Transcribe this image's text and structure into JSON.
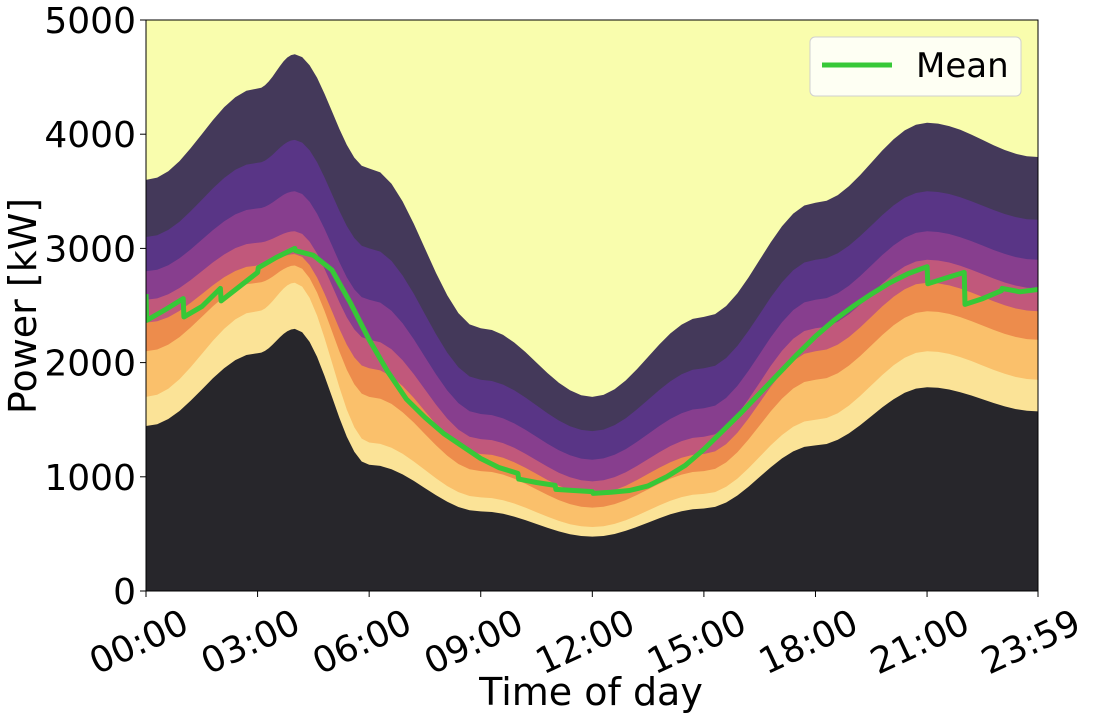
{
  "chart_data": {
    "type": "heatmap",
    "title": "",
    "xlabel": "Time of day",
    "ylabel": "Power [kW]",
    "x_ticks": [
      {
        "hour": 0,
        "label": "00:00"
      },
      {
        "hour": 3,
        "label": "03:00"
      },
      {
        "hour": 6,
        "label": "06:00"
      },
      {
        "hour": 9,
        "label": "09:00"
      },
      {
        "hour": 12,
        "label": "12:00"
      },
      {
        "hour": 15,
        "label": "15:00"
      },
      {
        "hour": 18,
        "label": "18:00"
      },
      {
        "hour": 21,
        "label": "21:00"
      },
      {
        "hour": 23.983,
        "label": "23:59"
      }
    ],
    "y_ticks": [
      0,
      1000,
      2000,
      3000,
      4000,
      5000
    ],
    "xlim": [
      0,
      23.983
    ],
    "ylim": [
      0,
      5000
    ],
    "legend": {
      "placement": "top-right",
      "entries": [
        "Mean"
      ]
    },
    "colormap": [
      "#27262b",
      "#3a2e55",
      "#5b3589",
      "#8a3f8e",
      "#c45a7a",
      "#ef8f4a",
      "#fbc36d",
      "#fbe59a",
      "#f9fdad"
    ],
    "mean_color": "#37c837",
    "series": [
      {
        "name": "Mean",
        "x": [
          0,
          0.02,
          0.5,
          1.0,
          1.02,
          1.5,
          2.0,
          2.02,
          3.0,
          3.02,
          3.5,
          4.0,
          4.02,
          4.5,
          5.0,
          5.5,
          6.0,
          6.5,
          7.0,
          7.5,
          8.0,
          8.5,
          9.0,
          9.5,
          10.0,
          10.02,
          10.5,
          11.0,
          11.02,
          11.5,
          12.0,
          12.02,
          12.5,
          13.0,
          13.5,
          14.0,
          14.5,
          15.0,
          15.5,
          16.0,
          16.5,
          17.0,
          17.5,
          18.0,
          18.5,
          19.0,
          19.5,
          20.0,
          20.5,
          21.0,
          21.02,
          21.5,
          22.0,
          22.02,
          22.5,
          23.0,
          23.02,
          23.5,
          23.983
        ],
        "values": [
          2600,
          2370,
          2460,
          2560,
          2400,
          2490,
          2650,
          2540,
          2790,
          2830,
          2920,
          3000,
          2980,
          2940,
          2810,
          2520,
          2200,
          1920,
          1680,
          1520,
          1380,
          1270,
          1160,
          1080,
          1030,
          980,
          950,
          925,
          890,
          880,
          870,
          855,
          865,
          880,
          920,
          1000,
          1100,
          1240,
          1400,
          1560,
          1730,
          1900,
          2070,
          2230,
          2370,
          2490,
          2600,
          2700,
          2780,
          2840,
          2690,
          2740,
          2790,
          2510,
          2560,
          2630,
          2650,
          2620,
          2640
        ]
      }
    ],
    "density_bands": [
      {
        "x": [
          0,
          3,
          4,
          6,
          9,
          12,
          15,
          18,
          21,
          23.983
        ],
        "y": [
          1700,
          2450,
          2700,
          1300,
          820,
          560,
          850,
          1500,
          2100,
          1850
        ],
        "level": 1
      },
      {
        "x": [
          0,
          3,
          4,
          6,
          9,
          12,
          15,
          18,
          21,
          23.983
        ],
        "y": [
          2100,
          2700,
          2850,
          1700,
          1050,
          730,
          1050,
          1850,
          2450,
          2200
        ],
        "level": 2
      },
      {
        "x": [
          0,
          3,
          4,
          6,
          9,
          12,
          15,
          18,
          21,
          23.983
        ],
        "y": [
          2350,
          2850,
          2950,
          1950,
          1200,
          850,
          1200,
          2100,
          2700,
          2450
        ],
        "level": 3
      },
      {
        "x": [
          0,
          3,
          4,
          6,
          9,
          12,
          15,
          18,
          21,
          23.983
        ],
        "y": [
          2550,
          3050,
          3150,
          2200,
          1330,
          960,
          1350,
          2300,
          2900,
          2650
        ],
        "level": 4
      },
      {
        "x": [
          0,
          3,
          4,
          6,
          9,
          12,
          15,
          18,
          21,
          23.983
        ],
        "y": [
          2800,
          3350,
          3500,
          2550,
          1550,
          1150,
          1600,
          2550,
          3150,
          2900
        ],
        "level": 5
      },
      {
        "x": [
          0,
          3,
          4,
          6,
          9,
          12,
          15,
          18,
          21,
          23.983
        ],
        "y": [
          3100,
          3750,
          3950,
          3000,
          1850,
          1400,
          1950,
          2900,
          3500,
          3250
        ],
        "level": 6
      },
      {
        "x": [
          0,
          3,
          4,
          6,
          9,
          12,
          15,
          18,
          21,
          23.983
        ],
        "y": [
          3600,
          4400,
          4700,
          3700,
          2300,
          1700,
          2400,
          3400,
          4100,
          3800
        ],
        "level": 7
      }
    ]
  }
}
